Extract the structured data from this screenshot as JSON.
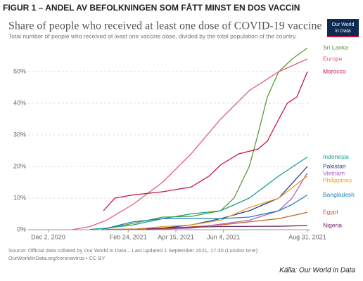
{
  "figure_label": "FIGUR 1 – ANDEL AV BEFOLKNINGEN SOM FÅTT MINST EN DOS VACCIN",
  "logo": [
    "Our World",
    "in Data"
  ],
  "chart_data": {
    "type": "line",
    "title": "Share of people who received at least one dose of COVID-19 vaccine",
    "subtitle": "Total number of people who received at least one vaccine dose, divided by the total population of the country.",
    "xlim": [
      "2020-11-11",
      "2021-09-03"
    ],
    "xticks": [
      {
        "value": "2020-12-02",
        "label": "Dec 2, 2020"
      },
      {
        "value": "2021-02-24",
        "label": "Feb 24, 2021"
      },
      {
        "value": "2021-04-15",
        "label": "Apr 15, 2021"
      },
      {
        "value": "2021-06-04",
        "label": "Jun 4, 2021"
      },
      {
        "value": "2021-08-31",
        "label": "Aug 31, 2021"
      }
    ],
    "ylim": [
      0,
      58
    ],
    "yticks": [
      {
        "value": 0,
        "label": "0%"
      },
      {
        "value": 10,
        "label": "10%"
      },
      {
        "value": 20,
        "label": "20%"
      },
      {
        "value": 30,
        "label": "30%"
      },
      {
        "value": 40,
        "label": "40%"
      },
      {
        "value": 50,
        "label": "50%"
      }
    ],
    "grid": true,
    "series": [
      {
        "name": "Sri Lanka",
        "color": "#5a9a3c",
        "x": [
          "2021-01-29",
          "2021-03-01",
          "2021-04-01",
          "2021-05-01",
          "2021-06-01",
          "2021-06-15",
          "2021-07-01",
          "2021-07-10",
          "2021-07-20",
          "2021-08-01",
          "2021-08-15",
          "2021-08-31"
        ],
        "values": [
          0.2,
          2,
          4,
          4.2,
          6,
          10,
          20,
          30,
          42,
          50,
          54,
          57.5
        ]
      },
      {
        "name": "Europe",
        "color": "#e0607a",
        "x": [
          "2020-12-27",
          "2021-01-15",
          "2021-02-01",
          "2021-03-01",
          "2021-04-01",
          "2021-05-01",
          "2021-06-01",
          "2021-07-01",
          "2021-08-01",
          "2021-08-31"
        ],
        "values": [
          0,
          1,
          3,
          8,
          15,
          24,
          35,
          44,
          50,
          54
        ]
      },
      {
        "name": "Morocco",
        "color": "#c8143c",
        "x": [
          "2021-01-29",
          "2021-02-10",
          "2021-03-01",
          "2021-04-01",
          "2021-05-01",
          "2021-05-20",
          "2021-06-01",
          "2021-06-20",
          "2021-07-10",
          "2021-07-20",
          "2021-08-01",
          "2021-08-10",
          "2021-08-20",
          "2021-08-31"
        ],
        "values": [
          6,
          10,
          11,
          12,
          13.5,
          17,
          20.5,
          24,
          25.5,
          28,
          35,
          40,
          42,
          50
        ]
      },
      {
        "name": "Indonesia",
        "color": "#18a08a",
        "x": [
          "2021-01-15",
          "2021-02-01",
          "2021-03-01",
          "2021-04-01",
          "2021-05-01",
          "2021-06-01",
          "2021-07-01",
          "2021-08-01",
          "2021-08-31"
        ],
        "values": [
          0.1,
          0.5,
          1.5,
          3.5,
          5,
          6,
          10,
          17,
          23
        ]
      },
      {
        "name": "Pakistan",
        "color": "#2a3d8f",
        "x": [
          "2021-03-01",
          "2021-04-01",
          "2021-05-01",
          "2021-06-01",
          "2021-07-01",
          "2021-08-01",
          "2021-08-31"
        ],
        "values": [
          0.1,
          0.5,
          1.5,
          3.5,
          6,
          10,
          20
        ]
      },
      {
        "name": "Vietnam",
        "color": "#b060c0",
        "x": [
          "2021-03-15",
          "2021-05-01",
          "2021-07-01",
          "2021-08-01",
          "2021-08-15",
          "2021-08-31"
        ],
        "values": [
          0,
          0.5,
          3,
          6,
          10,
          18
        ]
      },
      {
        "name": "Philippines",
        "color": "#e0a030",
        "x": [
          "2021-03-01",
          "2021-04-01",
          "2021-05-01",
          "2021-06-01",
          "2021-07-01",
          "2021-08-01",
          "2021-08-31"
        ],
        "values": [
          0.1,
          1,
          1.5,
          3,
          7,
          10,
          17
        ]
      },
      {
        "name": "Bangladesh",
        "color": "#2080c0",
        "x": [
          "2021-01-27",
          "2021-02-15",
          "2021-03-01",
          "2021-04-01",
          "2021-05-01",
          "2021-06-01",
          "2021-07-01",
          "2021-08-01",
          "2021-08-15",
          "2021-08-31"
        ],
        "values": [
          0,
          1.5,
          2.5,
          3.5,
          3.5,
          3.5,
          4,
          6,
          8,
          11
        ]
      },
      {
        "name": "Egypt",
        "color": "#c86020",
        "x": [
          "2021-02-01",
          "2021-04-01",
          "2021-06-01",
          "2021-07-01",
          "2021-08-01",
          "2021-08-31"
        ],
        "values": [
          0.1,
          0.3,
          1.5,
          2.5,
          3.5,
          5.5
        ]
      },
      {
        "name": "Nigeria",
        "color": "#6a2060",
        "x": [
          "2021-03-15",
          "2021-04-01",
          "2021-05-01",
          "2021-06-01",
          "2021-08-01",
          "2021-08-31"
        ],
        "values": [
          0.2,
          0.5,
          0.8,
          1,
          1.1,
          1.3
        ]
      }
    ]
  },
  "source": "Source: Official data collated by Our World in Data – Last updated 1 September 2021, 17:30 (London time)",
  "source_link": "OurWorldInData.org/coronavirus • CC BY",
  "credit": "Källa: Our World in Data"
}
